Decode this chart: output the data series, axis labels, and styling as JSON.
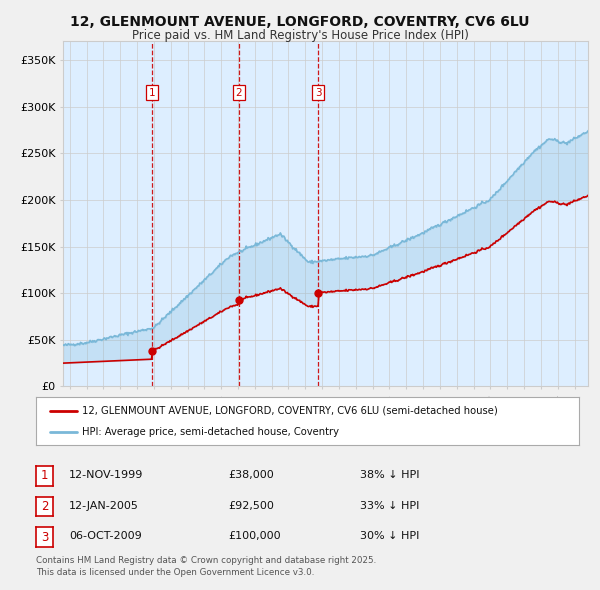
{
  "title": "12, GLENMOUNT AVENUE, LONGFORD, COVENTRY, CV6 6LU",
  "subtitle": "Price paid vs. HM Land Registry's House Price Index (HPI)",
  "legend_line1": "12, GLENMOUNT AVENUE, LONGFORD, COVENTRY, CV6 6LU (semi-detached house)",
  "legend_line2": "HPI: Average price, semi-detached house, Coventry",
  "footer1": "Contains HM Land Registry data © Crown copyright and database right 2025.",
  "footer2": "This data is licensed under the Open Government Licence v3.0.",
  "transactions": [
    {
      "num": 1,
      "date": "12-NOV-1999",
      "price": "£38,000",
      "hpi": "38% ↓ HPI",
      "year": 1999.87
    },
    {
      "num": 2,
      "date": "12-JAN-2005",
      "price": "£92,500",
      "hpi": "33% ↓ HPI",
      "year": 2005.04
    },
    {
      "num": 3,
      "date": "06-OCT-2009",
      "price": "£100,000",
      "hpi": "30% ↓ HPI",
      "year": 2009.77
    }
  ],
  "transaction_prices": [
    38000,
    92500,
    100000
  ],
  "background_color": "#f0f0f0",
  "plot_bg_color": "#ddeeff",
  "hpi_color": "#7ab8d8",
  "price_color": "#cc0000",
  "vline_color": "#cc0000",
  "grid_color": "#cccccc",
  "ylim": [
    0,
    370000
  ],
  "yticks": [
    0,
    50000,
    100000,
    150000,
    200000,
    250000,
    300000,
    350000
  ],
  "xlim_left": 1994.6,
  "xlim_right": 2025.8
}
